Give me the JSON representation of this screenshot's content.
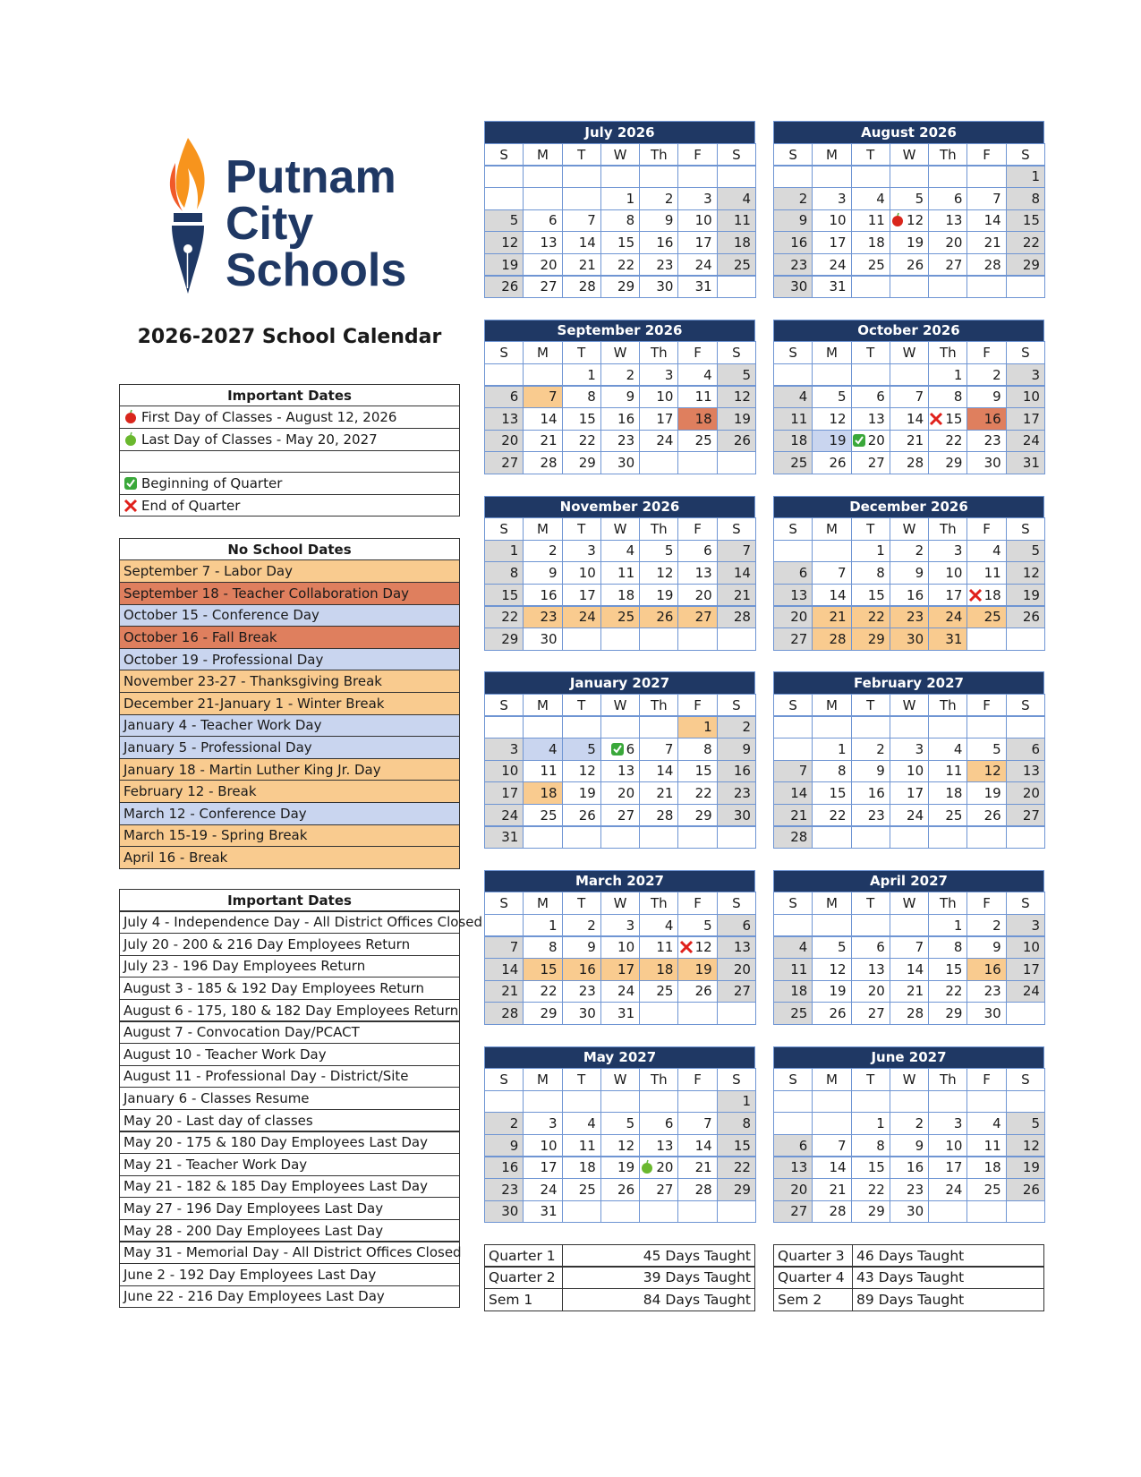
{
  "logo": {
    "lines": [
      "Putnam",
      "City",
      "Schools"
    ]
  },
  "title": "2026-2027 School Calendar",
  "colors": {
    "break": "#f9cb8f",
    "closure": "#df7f5e",
    "staff": "#c9d5ef",
    "weekend": "#d9d9d9"
  },
  "weekdays": [
    "S",
    "M",
    "T",
    "W",
    "Th",
    "F",
    "S"
  ],
  "legend": {
    "header": "Important Dates",
    "rows": [
      {
        "text": "First Day of Classes - August 12, 2026",
        "icon": "apple_red"
      },
      {
        "text": "Last Day of Classes - May 20, 2027",
        "icon": "apple_green"
      },
      {
        "text": null,
        "icon": null
      },
      {
        "text": "Beginning of Quarter",
        "icon": "check"
      },
      {
        "text": "End of Quarter",
        "icon": "x"
      }
    ]
  },
  "no_school": {
    "header": "No School Dates",
    "rows": [
      {
        "text": "September 7 - Labor Day",
        "kind": "break"
      },
      {
        "text": "September 18 - Teacher Collaboration Day",
        "kind": "closure"
      },
      {
        "text": "October 15 - Conference Day",
        "kind": "staff"
      },
      {
        "text": "October 16 - Fall Break",
        "kind": "closure"
      },
      {
        "text": "October 19 - Professional Day",
        "kind": "staff"
      },
      {
        "text": "November 23-27 - Thanksgiving Break",
        "kind": "break"
      },
      {
        "text": "December 21-January 1 - Winter Break",
        "kind": "break"
      },
      {
        "text": "January 4 - Teacher Work Day",
        "kind": "staff"
      },
      {
        "text": "January 5 - Professional Day",
        "kind": "staff"
      },
      {
        "text": "January 18 - Martin Luther King Jr. Day",
        "kind": "break"
      },
      {
        "text": "February 12 - Break",
        "kind": "break"
      },
      {
        "text": "March 12 - Conference Day",
        "kind": "staff"
      },
      {
        "text": "March 15-19 - Spring Break",
        "kind": "break"
      },
      {
        "text": "April 16 - Break",
        "kind": "break"
      }
    ]
  },
  "important_dates": {
    "header": "Important Dates",
    "rows": [
      "July 4 - Independence Day - All District Offices Closed",
      "July 20 - 200 & 216 Day Employees Return",
      "July 23 - 196 Day Employees Return",
      "August 3 - 185 & 192 Day Employees Return",
      "August 6 - 175, 180 & 182 Day Employees Return",
      "August 7 - Convocation Day/PCACT",
      "August 10 - Teacher Work Day",
      "August 11 - Professional Day - District/Site",
      "January 6 - Classes Resume",
      "May 20 - Last day of classes",
      "May 20 - 175 & 180 Day Employees Last Day",
      "May 21 - Teacher Work Day",
      "May 21 - 182 & 185 Day Employees Last Day",
      "May 27 - 196 Day Employees Last Day",
      "May 28 - 200 Day Employees Last Day",
      "May 31 - Memorial Day - All District Offices Closed",
      "June 2 - 192 Day Employees Last Day",
      "June 22 - 216 Day Employees Last Day"
    ]
  },
  "months": [
    {
      "name": "July 2026",
      "weeks": [
        [
          null,
          null,
          null,
          null,
          null,
          null,
          null
        ],
        [
          null,
          null,
          null,
          1,
          2,
          3,
          4
        ],
        [
          5,
          6,
          7,
          8,
          9,
          10,
          11
        ],
        [
          12,
          13,
          14,
          15,
          16,
          17,
          18
        ],
        [
          19,
          20,
          21,
          22,
          23,
          24,
          25
        ],
        [
          26,
          27,
          28,
          29,
          30,
          31,
          null
        ]
      ],
      "highlights": {},
      "icons": {}
    },
    {
      "name": "August 2026",
      "weeks": [
        [
          null,
          null,
          null,
          null,
          null,
          null,
          1
        ],
        [
          2,
          3,
          4,
          5,
          6,
          7,
          8
        ],
        [
          9,
          10,
          11,
          12,
          13,
          14,
          15
        ],
        [
          16,
          17,
          18,
          19,
          20,
          21,
          22
        ],
        [
          23,
          24,
          25,
          26,
          27,
          28,
          29
        ],
        [
          30,
          31,
          null,
          null,
          null,
          null,
          null
        ]
      ],
      "highlights": {},
      "icons": {
        "apple_red": [
          12
        ]
      }
    },
    {
      "name": "September 2026",
      "weeks": [
        [
          null,
          null,
          1,
          2,
          3,
          4,
          5
        ],
        [
          6,
          7,
          8,
          9,
          10,
          11,
          12
        ],
        [
          13,
          14,
          15,
          16,
          17,
          18,
          19
        ],
        [
          20,
          21,
          22,
          23,
          24,
          25,
          26
        ],
        [
          27,
          28,
          29,
          30,
          null,
          null,
          null
        ]
      ],
      "highlights": {
        "break": [
          7
        ],
        "closure": [
          18
        ]
      },
      "icons": {}
    },
    {
      "name": "October 2026",
      "weeks": [
        [
          null,
          null,
          null,
          null,
          1,
          2,
          3
        ],
        [
          4,
          5,
          6,
          7,
          8,
          9,
          10
        ],
        [
          11,
          12,
          13,
          14,
          15,
          16,
          17
        ],
        [
          18,
          19,
          20,
          21,
          22,
          23,
          24
        ],
        [
          25,
          26,
          27,
          28,
          29,
          30,
          31
        ]
      ],
      "highlights": {
        "closure": [
          16
        ],
        "staff": [
          19
        ]
      },
      "icons": {
        "x": [
          15
        ],
        "check": [
          20
        ]
      }
    },
    {
      "name": "November 2026",
      "weeks": [
        [
          1,
          2,
          3,
          4,
          5,
          6,
          7
        ],
        [
          8,
          9,
          10,
          11,
          12,
          13,
          14
        ],
        [
          15,
          16,
          17,
          18,
          19,
          20,
          21
        ],
        [
          22,
          23,
          24,
          25,
          26,
          27,
          28
        ],
        [
          29,
          30,
          null,
          null,
          null,
          null,
          null
        ]
      ],
      "highlights": {
        "break": [
          23,
          24,
          25,
          26,
          27
        ]
      },
      "icons": {}
    },
    {
      "name": "December 2026",
      "weeks": [
        [
          null,
          null,
          1,
          2,
          3,
          4,
          5
        ],
        [
          6,
          7,
          8,
          9,
          10,
          11,
          12
        ],
        [
          13,
          14,
          15,
          16,
          17,
          18,
          19
        ],
        [
          20,
          21,
          22,
          23,
          24,
          25,
          26
        ],
        [
          27,
          28,
          29,
          30,
          31,
          null,
          null
        ]
      ],
      "highlights": {
        "break": [
          21,
          22,
          23,
          24,
          25,
          28,
          29,
          30,
          31
        ]
      },
      "icons": {
        "x": [
          18
        ]
      }
    },
    {
      "name": "January 2027",
      "weeks": [
        [
          null,
          null,
          null,
          null,
          null,
          1,
          2
        ],
        [
          3,
          4,
          5,
          6,
          7,
          8,
          9
        ],
        [
          10,
          11,
          12,
          13,
          14,
          15,
          16
        ],
        [
          17,
          18,
          19,
          20,
          21,
          22,
          23
        ],
        [
          24,
          25,
          26,
          27,
          28,
          29,
          30
        ],
        [
          31,
          null,
          null,
          null,
          null,
          null,
          null
        ]
      ],
      "highlights": {
        "break": [
          1,
          18
        ],
        "staff": [
          4,
          5
        ]
      },
      "icons": {
        "check": [
          6
        ]
      }
    },
    {
      "name": "February 2027",
      "weeks": [
        [
          null,
          null,
          null,
          null,
          null,
          null,
          null
        ],
        [
          null,
          1,
          2,
          3,
          4,
          5,
          6
        ],
        [
          7,
          8,
          9,
          10,
          11,
          12,
          13
        ],
        [
          14,
          15,
          16,
          17,
          18,
          19,
          20
        ],
        [
          21,
          22,
          23,
          24,
          25,
          26,
          27
        ],
        [
          28,
          null,
          null,
          null,
          null,
          null,
          null
        ]
      ],
      "highlights": {
        "break": [
          12
        ]
      },
      "icons": {}
    },
    {
      "name": "March 2027",
      "weeks": [
        [
          null,
          1,
          2,
          3,
          4,
          5,
          6
        ],
        [
          7,
          8,
          9,
          10,
          11,
          12,
          13
        ],
        [
          14,
          15,
          16,
          17,
          18,
          19,
          20
        ],
        [
          21,
          22,
          23,
          24,
          25,
          26,
          27
        ],
        [
          28,
          29,
          30,
          31,
          null,
          null,
          null
        ]
      ],
      "highlights": {
        "break": [
          15,
          16,
          17,
          18,
          19
        ]
      },
      "icons": {
        "x": [
          12
        ]
      }
    },
    {
      "name": "April 2027",
      "weeks": [
        [
          null,
          null,
          null,
          null,
          1,
          2,
          3
        ],
        [
          4,
          5,
          6,
          7,
          8,
          9,
          10
        ],
        [
          11,
          12,
          13,
          14,
          15,
          16,
          17
        ],
        [
          18,
          19,
          20,
          21,
          22,
          23,
          24
        ],
        [
          25,
          26,
          27,
          28,
          29,
          30,
          null
        ]
      ],
      "highlights": {
        "break": [
          16
        ]
      },
      "icons": {}
    },
    {
      "name": "May 2027",
      "weeks": [
        [
          null,
          null,
          null,
          null,
          null,
          null,
          1
        ],
        [
          2,
          3,
          4,
          5,
          6,
          7,
          8
        ],
        [
          9,
          10,
          11,
          12,
          13,
          14,
          15
        ],
        [
          16,
          17,
          18,
          19,
          20,
          21,
          22
        ],
        [
          23,
          24,
          25,
          26,
          27,
          28,
          29
        ],
        [
          30,
          31,
          null,
          null,
          null,
          null,
          null
        ]
      ],
      "highlights": {},
      "icons": {
        "apple_green": [
          20
        ]
      }
    },
    {
      "name": "June 2027",
      "weeks": [
        [
          null,
          null,
          null,
          null,
          null,
          null,
          null
        ],
        [
          null,
          null,
          1,
          2,
          3,
          4,
          5
        ],
        [
          6,
          7,
          8,
          9,
          10,
          11,
          12
        ],
        [
          13,
          14,
          15,
          16,
          17,
          18,
          19
        ],
        [
          20,
          21,
          22,
          23,
          24,
          25,
          26
        ],
        [
          27,
          28,
          29,
          30,
          null,
          null,
          null
        ]
      ],
      "highlights": {},
      "icons": {}
    }
  ],
  "quarters": {
    "left": [
      [
        "Quarter 1",
        "45 Days Taught"
      ],
      [
        "Quarter 2",
        "39 Days Taught"
      ],
      [
        "Sem 1",
        "84 Days Taught"
      ]
    ],
    "right": [
      [
        "Quarter 3",
        "46 Days Taught"
      ],
      [
        "Quarter 4",
        "43 Days Taught"
      ],
      [
        "Sem 2",
        "89 Days Taught"
      ]
    ]
  }
}
